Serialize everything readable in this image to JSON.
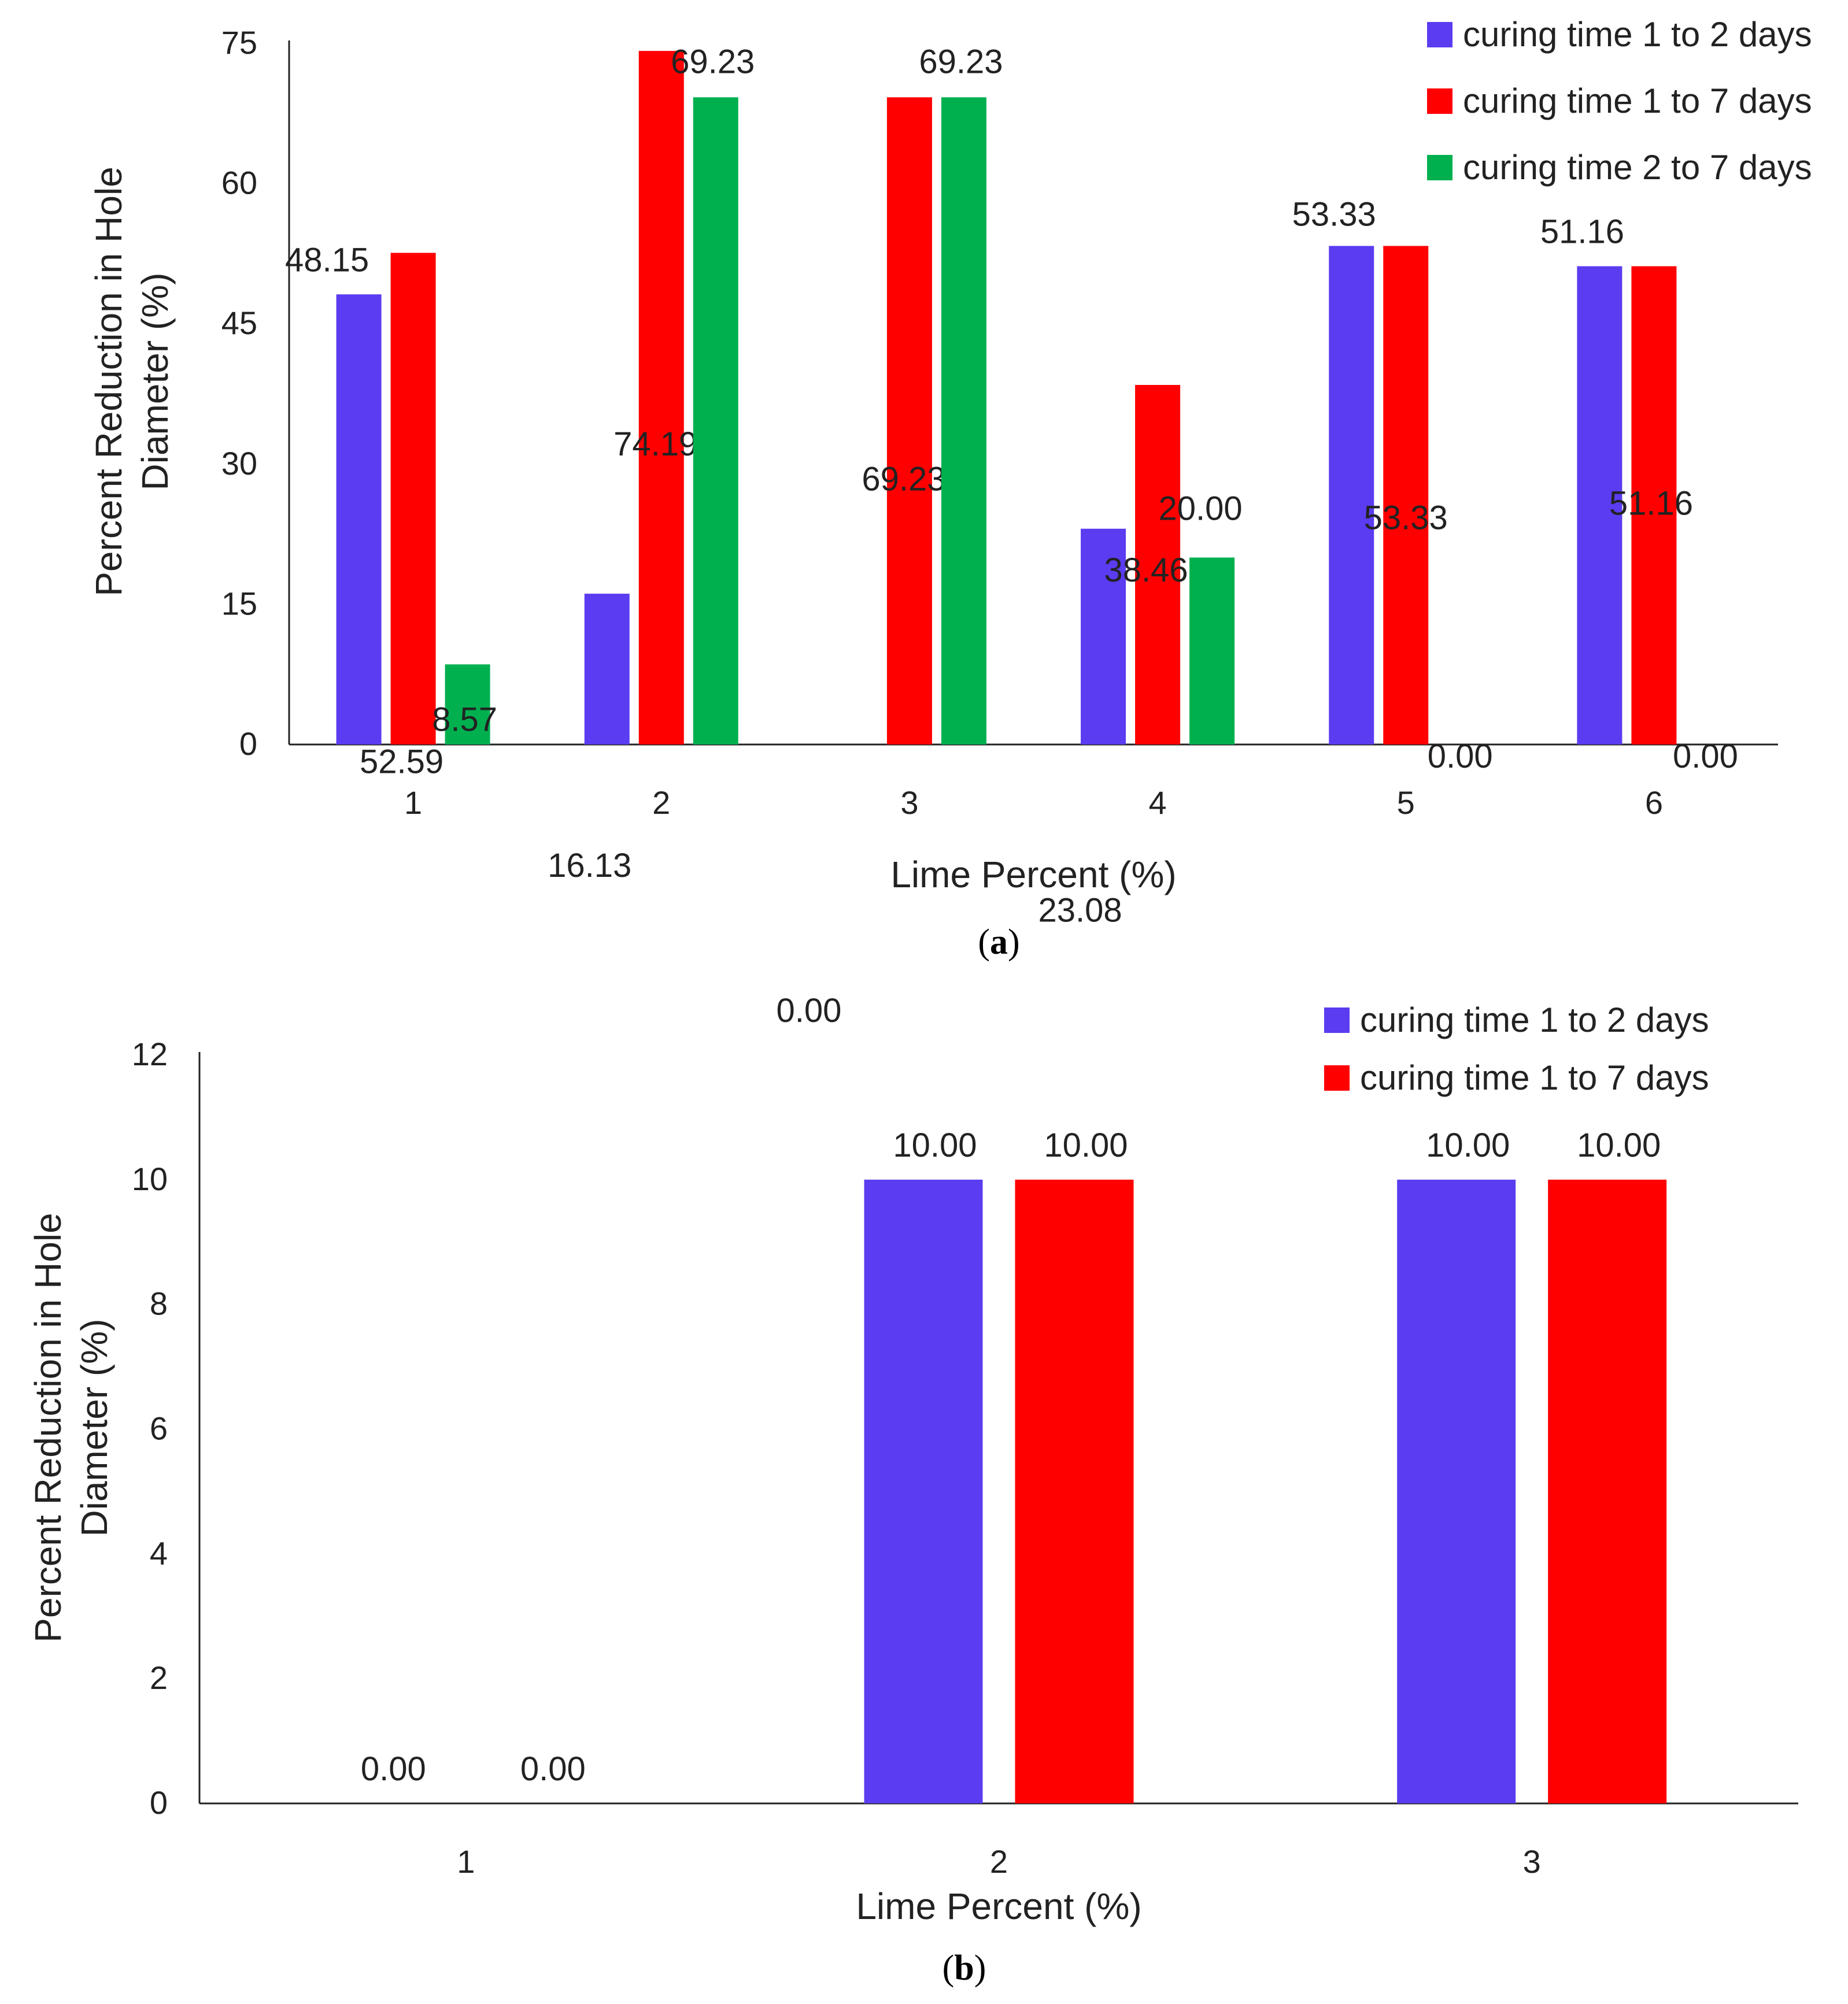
{
  "chart_data": [
    {
      "type": "bar",
      "panel": "a",
      "caption_open": "(",
      "caption_letter": "a",
      "caption_close": ")",
      "xlabel": "Lime Percent (%)",
      "ylabel_line1": "Percent Reduction in Hole",
      "ylabel_line2": "Diameter (%)",
      "ylim": [
        0,
        75
      ],
      "yticks": [
        0,
        15,
        30,
        45,
        60,
        75
      ],
      "categories": [
        "1",
        "2",
        "3",
        "4",
        "5",
        "6"
      ],
      "series": [
        {
          "name": "curing time 1 to 2 days",
          "color": "#5b3cf0",
          "values": [
            48.15,
            16.13,
            0.0,
            23.08,
            53.33,
            51.16
          ],
          "labels": [
            "48.15",
            "16.13",
            "0.00",
            "23.08",
            "53.33",
            "51.16"
          ]
        },
        {
          "name": "curing time 1 to 7 days",
          "color": "#fe0000",
          "values": [
            52.59,
            74.19,
            69.23,
            38.46,
            53.33,
            51.16
          ],
          "labels": [
            "52.59",
            "74.19",
            "69.23",
            "38.46",
            "53.33",
            "51.16"
          ]
        },
        {
          "name": "curing time 2 to 7 days",
          "color": "#00b04f",
          "values": [
            8.57,
            69.23,
            69.23,
            20.0,
            0.0,
            0.0
          ],
          "labels": [
            "8.57",
            "69.23",
            "69.23",
            "20.00",
            "0.00",
            "0.00"
          ]
        }
      ],
      "legend_position": "top-right"
    },
    {
      "type": "bar",
      "panel": "b",
      "caption_open": "(",
      "caption_letter": "b",
      "caption_close": ")",
      "xlabel": "Lime Percent (%)",
      "ylabel_line1": "Percent Reduction in Hole",
      "ylabel_line2": "Diameter (%)",
      "ylim": [
        0,
        12
      ],
      "yticks": [
        0,
        2,
        4,
        6,
        8,
        10,
        12
      ],
      "categories": [
        "1",
        "2",
        "3"
      ],
      "series": [
        {
          "name": "curing time 1 to 2 days",
          "color": "#5b3cf0",
          "values": [
            0.0,
            10.0,
            10.0
          ],
          "labels": [
            "0.00",
            "10.00",
            "10.00"
          ]
        },
        {
          "name": "curing time 1 to 7 days",
          "color": "#fe0000",
          "values": [
            0.0,
            10.0,
            10.0
          ],
          "labels": [
            "0.00",
            "10.00",
            "10.00"
          ]
        }
      ],
      "legend_position": "top-right"
    }
  ]
}
